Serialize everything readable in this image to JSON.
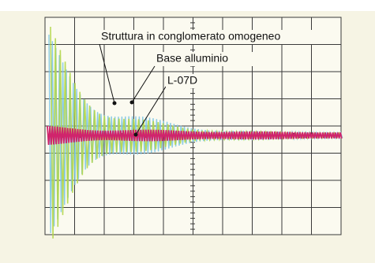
{
  "annotations": [
    {
      "label": "Struttura in conglomerato omogeneo"
    },
    {
      "label": "Base alluminio"
    },
    {
      "label": "L-07D"
    }
  ]
}
